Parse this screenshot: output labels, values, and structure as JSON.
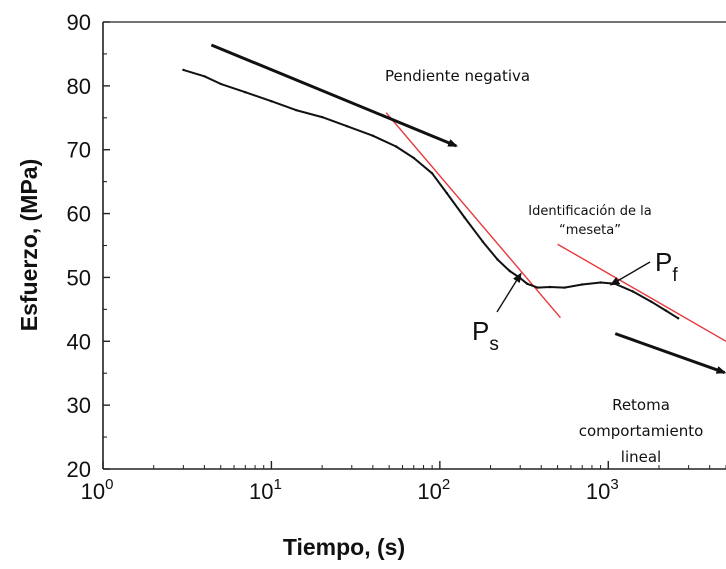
{
  "chart_data": {
    "type": "line",
    "title": "",
    "xlabel": "Tiempo, (s)",
    "ylabel": "Esfuerzo, (MPa)",
    "x_scale": "log",
    "xlim": [
      1,
      5000
    ],
    "ylim": [
      20,
      90
    ],
    "grid": false,
    "x_ticks": [
      {
        "value": 1,
        "base": "10",
        "exp": "0"
      },
      {
        "value": 10,
        "base": "10",
        "exp": "1"
      },
      {
        "value": 100,
        "base": "10",
        "exp": "2"
      },
      {
        "value": 1000,
        "base": "10",
        "exp": "3"
      }
    ],
    "y_ticks": [
      20,
      30,
      40,
      50,
      60,
      70,
      80,
      90
    ],
    "series": [
      {
        "color": "#111111",
        "x": [
          3,
          4,
          5,
          7,
          10,
          14,
          20,
          28,
          40,
          55,
          70,
          90,
          110,
          140,
          180,
          220,
          260,
          300,
          330,
          380,
          450,
          550,
          700,
          900,
          1100,
          1400,
          1800,
          2200,
          2600
        ],
        "y": [
          82.5,
          81.5,
          80.3,
          79,
          77.6,
          76.2,
          75.1,
          73.7,
          72.2,
          70.5,
          68.7,
          66.3,
          63.2,
          59.4,
          55.6,
          52.8,
          51,
          49.9,
          49,
          48.4,
          48.5,
          48.4,
          48.9,
          49.2,
          49,
          47.8,
          46.2,
          44.8,
          43.6
        ]
      }
    ],
    "fit_lines": [
      {
        "color": "#e8383d",
        "x": [
          48,
          520
        ],
        "y": [
          75.8,
          43.7
        ]
      },
      {
        "color": "#e8383d",
        "x": [
          500,
          5000
        ],
        "y": [
          55.2,
          40
        ]
      }
    ],
    "annotations": [
      {
        "name": "pendiente",
        "text": "Pendiente negativa"
      },
      {
        "name": "identificacion",
        "lines": [
          "Identificación de la",
          "“meseta”"
        ]
      },
      {
        "name": "retoma",
        "lines": [
          "Retoma",
          "comportamiento",
          "lineal"
        ]
      }
    ],
    "points": [
      {
        "name": "ps",
        "label": "P",
        "sub": "s",
        "x": 310,
        "y": 51
      },
      {
        "name": "pf",
        "label": "P",
        "sub": "f",
        "x": 1000,
        "y": 49.2
      }
    ],
    "arrows": [
      {
        "name": "arrow-pendiente",
        "x": [
          4.4,
          125
        ],
        "y": [
          86.4,
          70.6
        ]
      },
      {
        "name": "arrow-retoma",
        "x": [
          1100,
          4900
        ],
        "y": [
          41.2,
          35.1
        ]
      }
    ]
  }
}
